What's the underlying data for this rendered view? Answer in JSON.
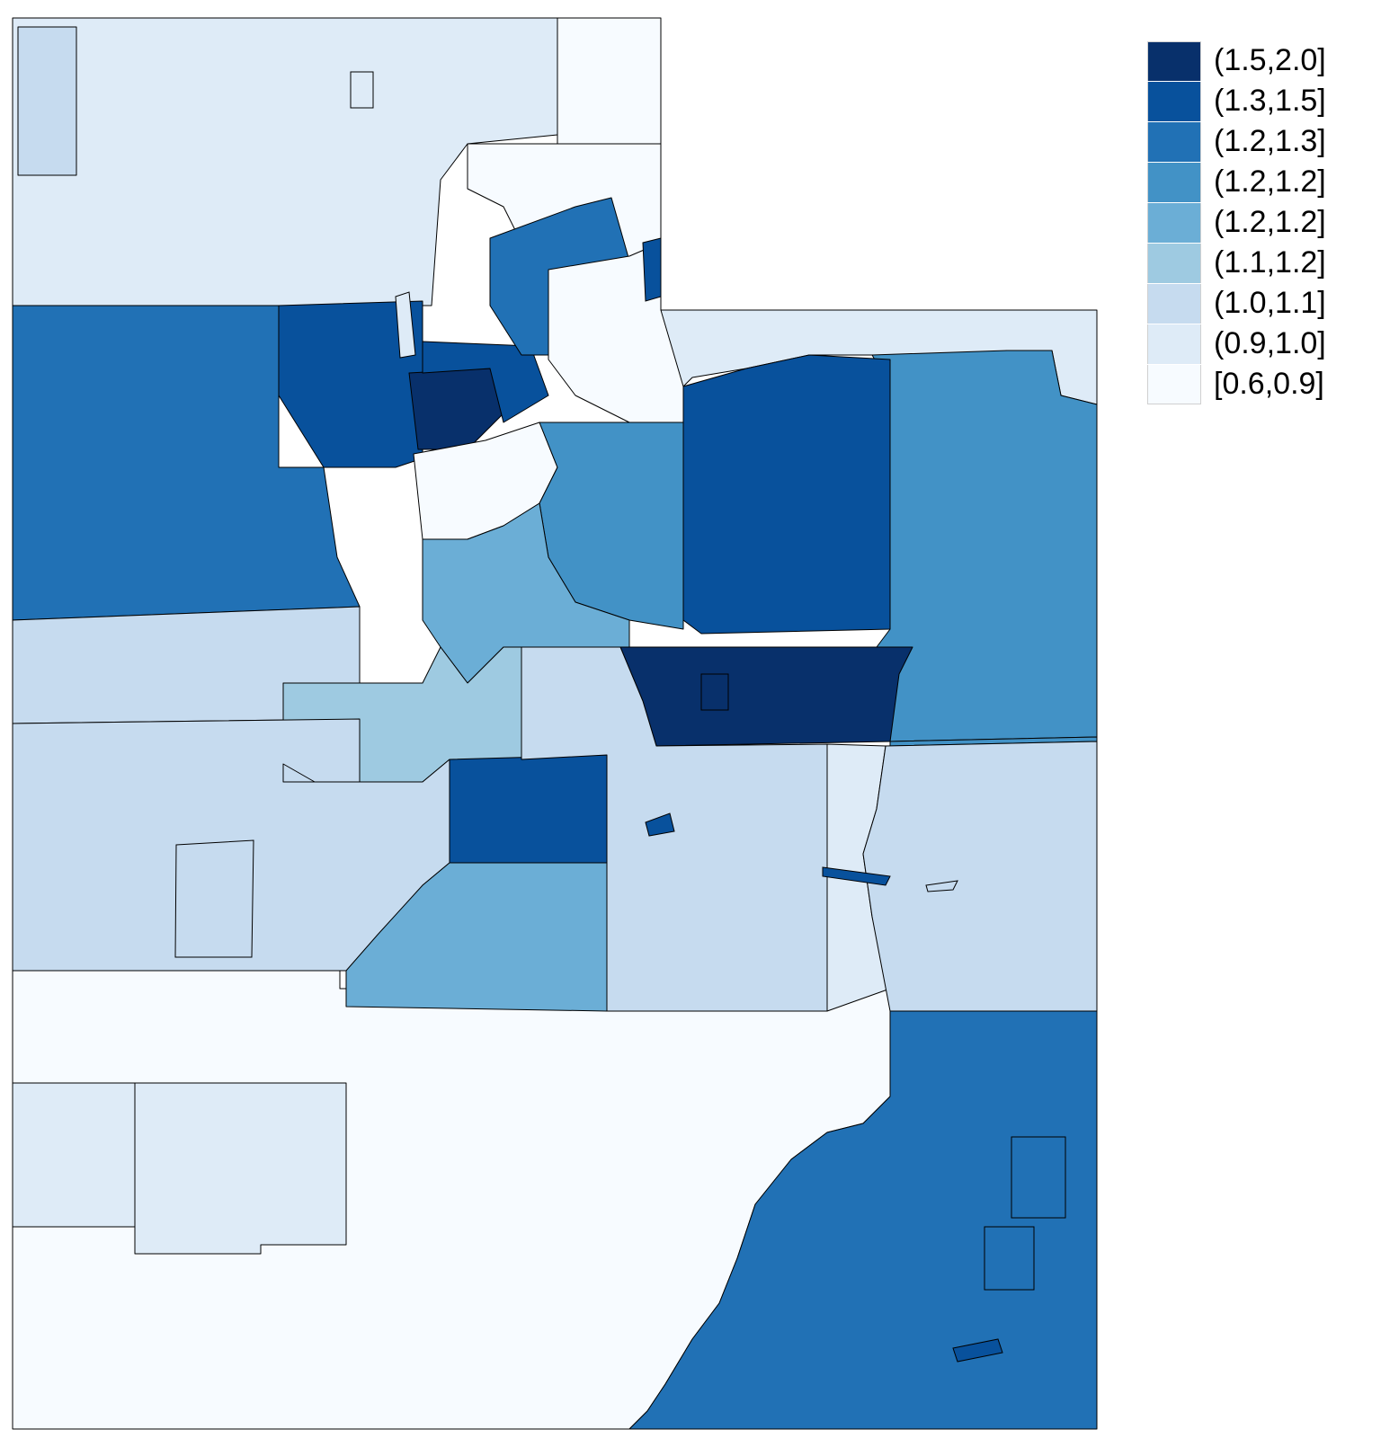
{
  "legend": {
    "classes": [
      {
        "label": "(1.5,2.0]",
        "color": "#08306b"
      },
      {
        "label": "(1.3,1.5]",
        "color": "#08519c"
      },
      {
        "label": "(1.2,1.3]",
        "color": "#2171b5"
      },
      {
        "label": "(1.2,1.2]",
        "color": "#4292c6"
      },
      {
        "label": "(1.2,1.2]",
        "color": "#6baed6"
      },
      {
        "label": "(1.1,1.2]",
        "color": "#9ecae1"
      },
      {
        "label": "(1.0,1.1]",
        "color": "#c6dbef"
      },
      {
        "label": "(0.9,1.0]",
        "color": "#deebf7"
      },
      {
        "label": "[0.6,0.9]",
        "color": "#f7fbff"
      }
    ]
  },
  "map": {
    "regions": [
      {
        "id": "nw-west",
        "class": 6
      },
      {
        "id": "nw-main",
        "class": 7
      },
      {
        "id": "north-east-strip",
        "class": 8
      },
      {
        "id": "north-east-upper",
        "class": 8
      },
      {
        "id": "far-west-band",
        "class": 2
      },
      {
        "id": "west-center-band",
        "class": 1
      },
      {
        "id": "metro-core",
        "class": 0
      },
      {
        "id": "metro-south",
        "class": 1
      },
      {
        "id": "east-mountain",
        "class": 2
      },
      {
        "id": "mountain-white",
        "class": 8
      },
      {
        "id": "ne-upper-strip",
        "class": 7
      },
      {
        "id": "ne-basin-west",
        "class": 1
      },
      {
        "id": "ne-basin-east",
        "class": 3
      },
      {
        "id": "central-mid",
        "class": 3
      },
      {
        "id": "utah-valley",
        "class": 4
      },
      {
        "id": "valley-white",
        "class": 8
      },
      {
        "id": "west-mid",
        "class": 6
      },
      {
        "id": "center-south-a",
        "class": 5
      },
      {
        "id": "center-dark",
        "class": 0
      },
      {
        "id": "east-large",
        "class": 3
      },
      {
        "id": "west-lower",
        "class": 6
      },
      {
        "id": "center-navy",
        "class": 1
      },
      {
        "id": "center-lightblue",
        "class": 4
      },
      {
        "id": "center-pale",
        "class": 6
      },
      {
        "id": "east-pale",
        "class": 6
      },
      {
        "id": "river-strip",
        "class": 7
      },
      {
        "id": "south-white",
        "class": 8
      },
      {
        "id": "southeast",
        "class": 2
      },
      {
        "id": "southwest-pale",
        "class": 7
      },
      {
        "id": "southwest-grey",
        "class": 7
      }
    ]
  }
}
